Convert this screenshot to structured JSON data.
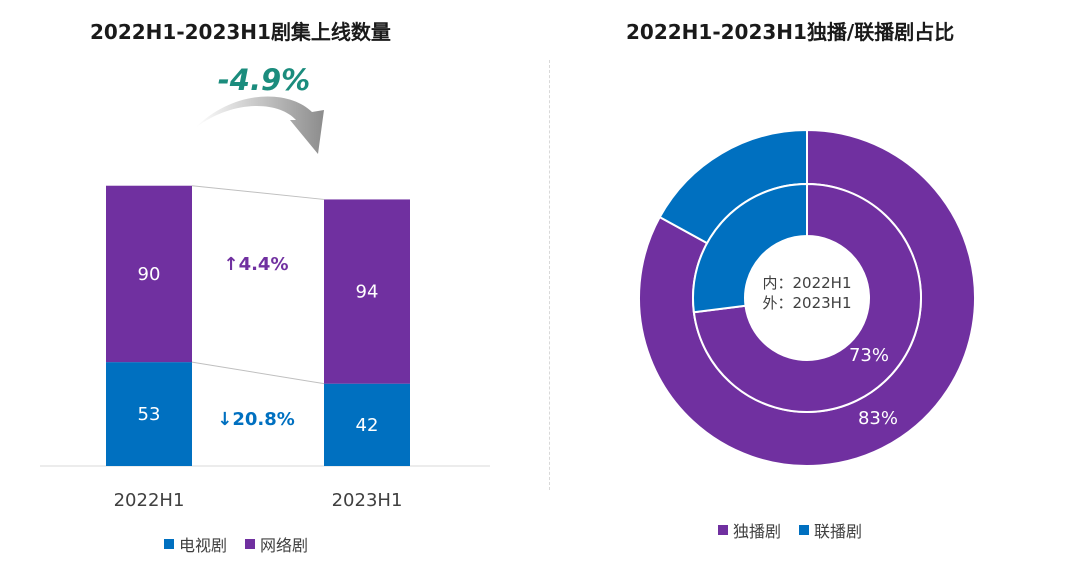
{
  "chart_data": [
    {
      "type": "bar",
      "stacked": true,
      "title": "2022H1-2023H1剧集上线数量",
      "categories": [
        "2022H1",
        "2023H1"
      ],
      "series": [
        {
          "name": "电视剧",
          "values": [
            53,
            42
          ],
          "color": "#0070c0"
        },
        {
          "name": "网络剧",
          "values": [
            90,
            94
          ],
          "color": "#7030a0"
        }
      ],
      "annotations": {
        "total_change": "-4.9%",
        "tv_change": "↓20.8%",
        "web_change": "↑4.4%"
      },
      "legend_position": "bottom",
      "ylim": [
        0,
        160
      ]
    },
    {
      "type": "pie",
      "variant": "nested-donut",
      "title": "2022H1-2023H1独播/联播剧占比",
      "labels": [
        "独播剧",
        "联播剧"
      ],
      "colors": [
        "#7030a0",
        "#0070c0"
      ],
      "inner": {
        "period": "2022H1",
        "values": [
          73,
          27
        ],
        "value_labels": [
          "73%",
          ""
        ]
      },
      "outer": {
        "period": "2023H1",
        "values": [
          83,
          17
        ],
        "value_labels": [
          "83%",
          ""
        ]
      },
      "center_text": [
        "内：2022H1",
        "外：2023H1"
      ],
      "legend_position": "bottom"
    }
  ]
}
